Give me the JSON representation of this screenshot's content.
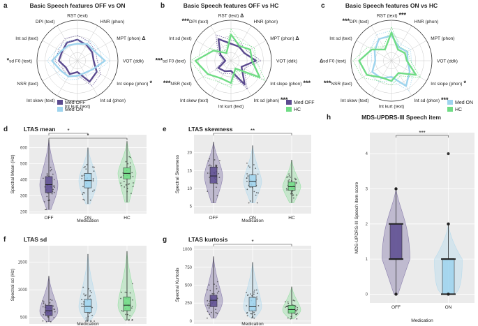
{
  "colors": {
    "off": "#5b4a8f",
    "on": "#9ed4ee",
    "hc": "#6fdc84",
    "grid": "#bdbdbd",
    "panel_bg": "#ebebeb"
  },
  "radar_axes": [
    "RST (text)",
    "HNR (phon)",
    "MPT (phon)",
    "VOT (ddk)",
    "Int slope (phon)",
    "Int sd (phon)",
    "Int kurt (text)",
    "Int skew (text)",
    "NSR (text)",
    "sd F0 (text)",
    "Int sd (text)",
    "DPI (text)"
  ],
  "chart_data": [
    {
      "panel": "a",
      "type": "radar",
      "title": "Basic Speech features OFF vs ON",
      "axes": [
        "RST (text)",
        "HNR (phon)",
        "MPT (phon)",
        "VOT (ddk)",
        "Int slope (phon)",
        "Int sd (phon)",
        "Int kurt (text)",
        "Int skew (text)",
        "NSR (text)",
        "sd F0 (text)",
        "Int sd (text)",
        "DPI (text)"
      ],
      "axis_marks": [
        "",
        "",
        "Δ",
        "",
        "*",
        "",
        "",
        "",
        "",
        "*",
        "",
        ""
      ],
      "rmax": 1.0,
      "series": [
        {
          "name": "Med OFF",
          "color": "#5b4a8f",
          "values": [
            0.52,
            0.45,
            0.42,
            0.4,
            0.55,
            0.6,
            0.28,
            0.38,
            0.33,
            0.46,
            0.44,
            0.52
          ]
        },
        {
          "name": "Med ON",
          "color": "#9ed4ee",
          "values": [
            0.42,
            0.48,
            0.48,
            0.68,
            0.43,
            0.35,
            0.37,
            0.45,
            0.48,
            0.63,
            0.47,
            0.44
          ]
        }
      ]
    },
    {
      "panel": "b",
      "type": "radar",
      "title": "Basic Speech features OFF vs HC",
      "axes": [
        "RST (text)",
        "HNR (phon)",
        "MPT (phon)",
        "VOT (ddk)",
        "Int slope (phon)",
        "Int sd (phon)",
        "Int kurt (text)",
        "Int skew (text)",
        "NSR (text)",
        "sd F0 (text)",
        "Int sd (text)",
        "DPI (text)"
      ],
      "axis_marks": [
        "Δ",
        "",
        "Δ",
        "",
        "***",
        "***",
        "",
        "",
        "***",
        "***",
        "",
        "***"
      ],
      "rmax": 1.0,
      "series": [
        {
          "name": "Med OFF",
          "color": "#5b4a8f",
          "values": [
            0.42,
            0.4,
            0.38,
            0.62,
            0.3,
            0.68,
            0.25,
            0.3,
            0.36,
            0.14,
            0.3,
            0.62
          ]
        },
        {
          "name": "HC",
          "color": "#6fdc84",
          "values": [
            0.65,
            0.42,
            0.55,
            0.52,
            0.82,
            0.22,
            0.55,
            0.5,
            0.66,
            0.88,
            0.5,
            0.22
          ]
        }
      ]
    },
    {
      "panel": "c",
      "type": "radar",
      "title": "Basic Speech features ON vs HC",
      "axes": [
        "RST (text)",
        "HNR (phon)",
        "MPT (phon)",
        "VOT (ddk)",
        "Int slope (phon)",
        "Int sd (phon)",
        "Int kurt (text)",
        "Int skew (text)",
        "NSR (text)",
        "sd F0 (text)",
        "Int sd (text)",
        "DPI (text)"
      ],
      "axis_marks": [
        "***",
        "",
        "",
        "",
        "*",
        "***",
        "",
        "",
        "***",
        "Δ",
        "",
        "***"
      ],
      "rmax": 1.0,
      "series": [
        {
          "name": "Med ON",
          "color": "#9ed4ee",
          "values": [
            0.62,
            0.38,
            0.45,
            0.4,
            0.52,
            0.72,
            0.4,
            0.5,
            0.55,
            0.4,
            0.48,
            0.62
          ]
        },
        {
          "name": "HC",
          "color": "#6fdc84",
          "values": [
            0.7,
            0.32,
            0.38,
            0.38,
            0.7,
            0.35,
            0.5,
            0.48,
            0.7,
            0.8,
            0.56,
            0.32
          ]
        }
      ]
    },
    {
      "panel": "d",
      "type": "violin",
      "title": "LTAS mean",
      "xlabel": "Medication",
      "ylabel": "Spectral Mean (Hz)",
      "categories": [
        "OFF",
        "ON",
        "HC"
      ],
      "yticks": [
        200,
        300,
        400,
        500,
        600
      ],
      "ylim": [
        190,
        680
      ],
      "stats": [
        {
          "q1": 320,
          "median": 370,
          "q3": 420,
          "min": 215,
          "max": 650
        },
        {
          "q1": 350,
          "median": 395,
          "q3": 440,
          "min": 250,
          "max": 600
        },
        {
          "q1": 405,
          "median": 440,
          "q3": 475,
          "min": 260,
          "max": 640
        }
      ],
      "significance": [
        {
          "pair": [
            0,
            1
          ],
          "label": "*"
        },
        {
          "pair": [
            0,
            2
          ],
          "label": "*"
        }
      ]
    },
    {
      "panel": "e",
      "type": "violin",
      "title": "LTAS skewness",
      "xlabel": "Medication",
      "ylabel": "Spectral Skewness",
      "categories": [
        "OFF",
        "ON",
        "HC"
      ],
      "yticks": [
        5,
        10,
        15,
        20
      ],
      "ylim": [
        3,
        25
      ],
      "stats": [
        {
          "q1": 11.5,
          "median": 13.5,
          "q3": 16,
          "min": 6,
          "max": 23
        },
        {
          "q1": 10.5,
          "median": 12,
          "q3": 13.8,
          "min": 6,
          "max": 22
        },
        {
          "q1": 9.5,
          "median": 10.5,
          "q3": 11.8,
          "min": 6,
          "max": 18
        }
      ],
      "significance": [
        {
          "pair": [
            0,
            2
          ],
          "label": "**"
        }
      ]
    },
    {
      "panel": "f",
      "type": "violin",
      "title": "LTAS sd",
      "xlabel": "Medication",
      "ylabel": "Spectral sd (Hz)",
      "categories": [
        "OFF",
        "ON",
        "HC"
      ],
      "yticks": [
        500,
        1000,
        1500
      ],
      "ylim": [
        380,
        1800
      ],
      "stats": [
        {
          "q1": 530,
          "median": 620,
          "q3": 720,
          "min": 420,
          "max": 1250
        },
        {
          "q1": 590,
          "median": 700,
          "q3": 830,
          "min": 430,
          "max": 1650
        },
        {
          "q1": 620,
          "median": 720,
          "q3": 870,
          "min": 450,
          "max": 1700
        }
      ],
      "significance": []
    },
    {
      "panel": "g",
      "type": "violin",
      "title": "LTAS kurtosis",
      "xlabel": "Medication",
      "ylabel": "Spectral Kurtosis",
      "categories": [
        "OFF",
        "ON",
        "HC"
      ],
      "yticks": [
        0,
        250,
        500,
        750,
        1000
      ],
      "ylim": [
        -40,
        1050
      ],
      "stats": [
        {
          "q1": 200,
          "median": 290,
          "q3": 360,
          "min": 40,
          "max": 900
        },
        {
          "q1": 140,
          "median": 200,
          "q3": 330,
          "min": 40,
          "max": 820
        },
        {
          "q1": 110,
          "median": 160,
          "q3": 220,
          "min": 30,
          "max": 480
        }
      ],
      "significance": [
        {
          "pair": [
            0,
            2
          ],
          "label": "*"
        }
      ]
    },
    {
      "panel": "h",
      "type": "violin",
      "title": "MDS-UPDRS-III Speech item",
      "xlabel": "Medication",
      "ylabel": "MDS-UPDRS-III Speech item score",
      "categories": [
        "OFF",
        "ON"
      ],
      "yticks": [
        0,
        1,
        2,
        3,
        4
      ],
      "ylim": [
        -0.25,
        4.6
      ],
      "stats": [
        {
          "q1": 1,
          "median": 1,
          "q3": 2,
          "min": 0,
          "max": 3
        },
        {
          "q1": 0,
          "median": 1,
          "q3": 1,
          "min": 0,
          "max": 2,
          "outlier": 4
        }
      ],
      "significance": [
        {
          "pair": [
            0,
            1
          ],
          "label": "***"
        }
      ]
    }
  ]
}
